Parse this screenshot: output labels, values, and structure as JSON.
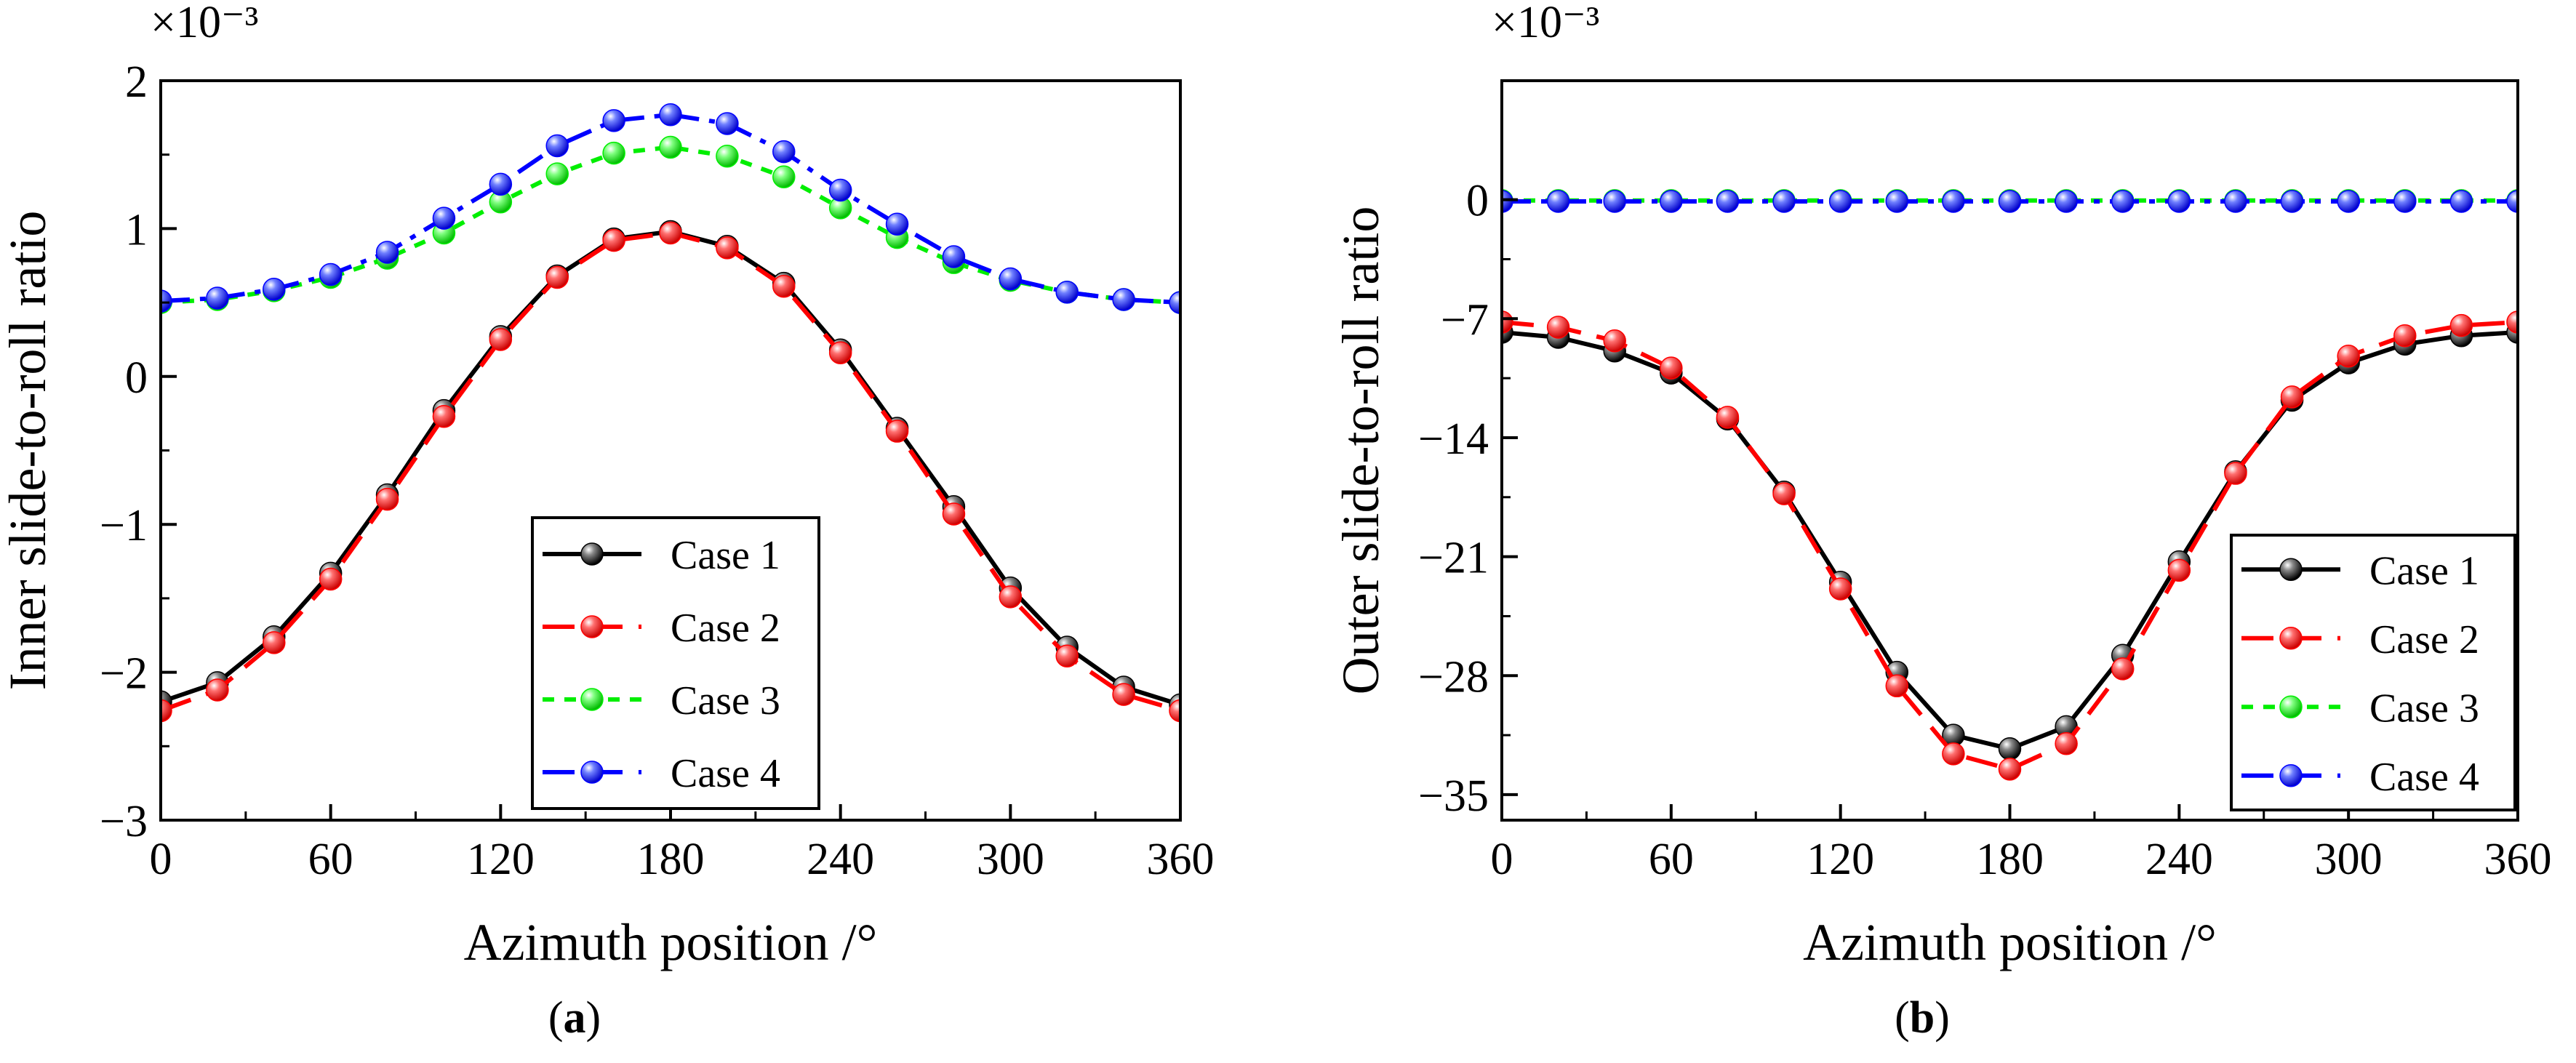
{
  "chart_data": [
    {
      "id": "a",
      "type": "line",
      "panel_label": "(a)",
      "panel_label_parts": [
        "(",
        "a",
        ")"
      ],
      "xlabel": "Azimuth position /°",
      "ylabel": "Inner slide-to-roll ratio",
      "y_scale_label": "×10⁻³",
      "xlim": [
        0,
        360
      ],
      "ylim": [
        -3,
        2
      ],
      "xticks": [
        0,
        60,
        120,
        180,
        240,
        300,
        360
      ],
      "xtick_labels": [
        "0",
        "60",
        "120",
        "180",
        "240",
        "300",
        "360"
      ],
      "yticks": [
        -3,
        -2,
        -1,
        0,
        1,
        2
      ],
      "ytick_labels": [
        "−3",
        "−2",
        "−1",
        "0",
        "1",
        "2"
      ],
      "legend_position": "lower-right",
      "x": [
        0,
        20,
        40,
        60,
        80,
        100,
        120,
        140,
        160,
        180,
        200,
        220,
        240,
        260,
        280,
        300,
        320,
        340,
        360
      ],
      "series": [
        {
          "name": "Case 1",
          "color": "#000000",
          "dash": "solid",
          "values": [
            -2.2,
            -2.07,
            -1.76,
            -1.33,
            -0.8,
            -0.23,
            0.27,
            0.68,
            0.93,
            0.98,
            0.88,
            0.63,
            0.18,
            -0.35,
            -0.88,
            -1.43,
            -1.83,
            -2.1,
            -2.22
          ]
        },
        {
          "name": "Case 2",
          "color": "#ff0000",
          "dash": "long-dash",
          "values": [
            -2.26,
            -2.12,
            -1.8,
            -1.37,
            -0.83,
            -0.27,
            0.25,
            0.67,
            0.92,
            0.97,
            0.87,
            0.61,
            0.16,
            -0.37,
            -0.93,
            -1.49,
            -1.89,
            -2.15,
            -2.26
          ]
        },
        {
          "name": "Case 3",
          "color": "#00ee00",
          "dash": "short-dash",
          "values": [
            0.5,
            0.52,
            0.58,
            0.67,
            0.8,
            0.97,
            1.18,
            1.37,
            1.51,
            1.55,
            1.49,
            1.35,
            1.14,
            0.94,
            0.77,
            0.65,
            0.57,
            0.52,
            0.5
          ]
        },
        {
          "name": "Case 4",
          "color": "#0000ff",
          "dash": "dash-dot",
          "values": [
            0.51,
            0.53,
            0.59,
            0.69,
            0.84,
            1.07,
            1.3,
            1.56,
            1.73,
            1.77,
            1.71,
            1.52,
            1.26,
            1.03,
            0.81,
            0.66,
            0.57,
            0.52,
            0.5
          ]
        }
      ]
    },
    {
      "id": "b",
      "type": "line",
      "panel_label": "(b)",
      "panel_label_parts": [
        "(",
        "b",
        ")"
      ],
      "xlabel": "Azimuth position /°",
      "ylabel": "Outer slide-to-roll ratio",
      "y_scale_label": "×10⁻³",
      "xlim": [
        0,
        360
      ],
      "ylim": [
        -36.5,
        7
      ],
      "xticks": [
        0,
        60,
        120,
        180,
        240,
        300,
        360
      ],
      "xtick_labels": [
        "0",
        "60",
        "120",
        "180",
        "240",
        "300",
        "360"
      ],
      "yticks": [
        -35,
        -28,
        -21,
        -14,
        -7,
        0
      ],
      "ytick_labels": [
        "−35",
        "−28",
        "−21",
        "−14",
        "−7",
        "0"
      ],
      "legend_position": "lower-right",
      "x": [
        0,
        20,
        40,
        60,
        80,
        100,
        120,
        140,
        160,
        180,
        200,
        220,
        240,
        260,
        280,
        300,
        320,
        340,
        360
      ],
      "series": [
        {
          "name": "Case 1",
          "color": "#000000",
          "dash": "solid",
          "values": [
            -7.8,
            -8.1,
            -8.9,
            -10.2,
            -12.9,
            -17.2,
            -22.5,
            -27.8,
            -31.5,
            -32.3,
            -31.0,
            -26.8,
            -21.3,
            -16.0,
            -11.8,
            -9.6,
            -8.5,
            -8.0,
            -7.8
          ]
        },
        {
          "name": "Case 2",
          "color": "#ff0000",
          "dash": "long-dash",
          "values": [
            -7.2,
            -7.5,
            -8.3,
            -9.9,
            -12.8,
            -17.3,
            -22.9,
            -28.6,
            -32.6,
            -33.5,
            -32.0,
            -27.6,
            -21.8,
            -16.1,
            -11.6,
            -9.2,
            -8.0,
            -7.4,
            -7.2
          ]
        },
        {
          "name": "Case 3",
          "color": "#00ee00",
          "dash": "short-dash",
          "values": [
            -0.05,
            -0.05,
            -0.05,
            -0.05,
            -0.05,
            -0.05,
            -0.05,
            -0.05,
            -0.05,
            -0.05,
            -0.05,
            -0.05,
            -0.05,
            -0.05,
            -0.05,
            -0.05,
            -0.05,
            -0.05,
            -0.05
          ]
        },
        {
          "name": "Case 4",
          "color": "#0000ff",
          "dash": "dash-dot",
          "values": [
            -0.1,
            -0.1,
            -0.1,
            -0.1,
            -0.1,
            -0.1,
            -0.1,
            -0.1,
            -0.1,
            -0.1,
            -0.1,
            -0.1,
            -0.1,
            -0.1,
            -0.1,
            -0.1,
            -0.1,
            -0.1,
            -0.1
          ]
        }
      ]
    }
  ]
}
